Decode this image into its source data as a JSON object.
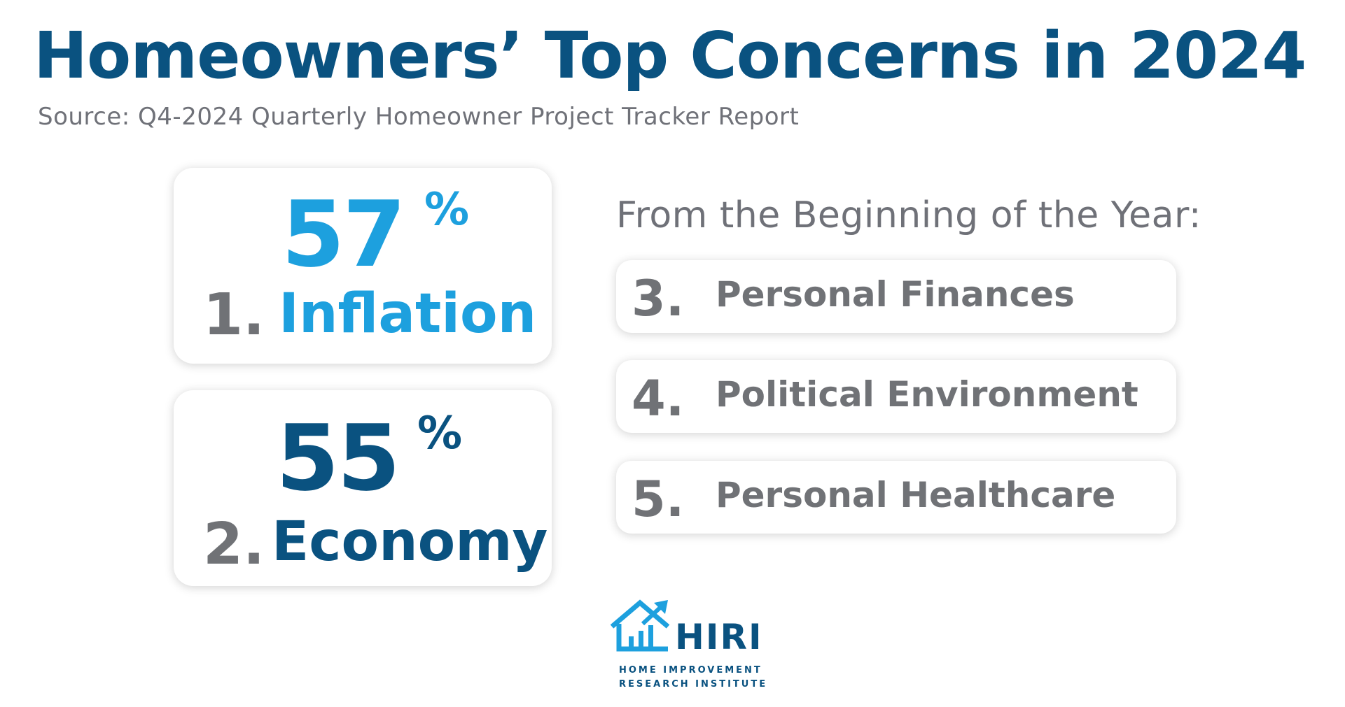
{
  "header": {
    "title": "Homeowners’ Top Concerns in 2024",
    "source": "Source: Q4-2024 Quarterly Homeowner Project Tracker Report"
  },
  "top_concerns": [
    {
      "rank": "1.",
      "label": "Inflation",
      "percent": "57",
      "percent_sign": "%",
      "color": "#1da0de"
    },
    {
      "rank": "2.",
      "label": "Economy",
      "percent": "55",
      "percent_sign": "%",
      "color": "#0a5280"
    }
  ],
  "beginning_of_year": {
    "heading": "From the Beginning of the Year:",
    "items": [
      {
        "rank": "3.",
        "label": "Personal Finances"
      },
      {
        "rank": "4.",
        "label": "Political Environment"
      },
      {
        "rank": "5.",
        "label": "Personal Healthcare"
      }
    ]
  },
  "logo": {
    "name": "HIRI",
    "line1": "HOME IMPROVEMENT",
    "line2": "RESEARCH INSTITUTE",
    "icon": "house-chart-icon",
    "colors": {
      "primary": "#0a5280",
      "accent": "#1da0de"
    }
  }
}
